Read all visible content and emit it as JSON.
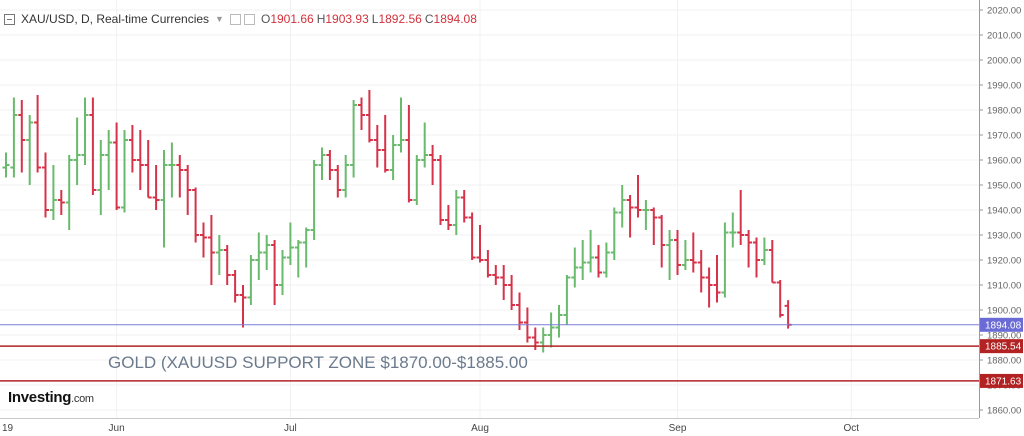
{
  "legend": {
    "symbol": "XAU/USD, D, Real-time Currencies",
    "open_key": "O",
    "open": "1901.66",
    "high_key": "H",
    "high": "1903.93",
    "low_key": "L",
    "low": "1892.56",
    "close_key": "C",
    "close": "1894.08"
  },
  "brand": {
    "name": "Investing",
    "suffix": ".com"
  },
  "chart_data": {
    "type": "ohlc",
    "title": "",
    "y_range": [
      1856,
      2022
    ],
    "y_ticks": [
      "2020.00",
      "2010.00",
      "2000.00",
      "1990.00",
      "1980.00",
      "1970.00",
      "1960.00",
      "1950.00",
      "1940.00",
      "1930.00",
      "1920.00",
      "1910.00",
      "1900.00",
      "1890.00",
      "1880.00",
      "1870.00",
      "1860.00"
    ],
    "x_labels": [
      {
        "text": "19",
        "bar": 0
      },
      {
        "text": "Jun",
        "bar": 14
      },
      {
        "text": "Jul",
        "bar": 36
      },
      {
        "text": "Aug",
        "bar": 60
      },
      {
        "text": "Sep",
        "bar": 85
      },
      {
        "text": "Oct",
        "bar": 107
      }
    ],
    "colors": {
      "up": "#6aba6e",
      "down": "#d6334a",
      "support": "#b22222",
      "price_line": "#7b7bd8",
      "price_tag": "#6b6bd6"
    },
    "current_price": {
      "value": 1894.08,
      "label": "1894.08"
    },
    "support_zone": {
      "label": "GOLD (XAUUSD SUPPORT ZONE $1870.00-$1885.00",
      "upper": {
        "value": 1885.54,
        "label": "1885.54"
      },
      "lower": {
        "value": 1871.63,
        "label": "1871.63"
      }
    },
    "bars": [
      {
        "o": 1957,
        "h": 1963,
        "l": 1953,
        "c": 1958
      },
      {
        "o": 1957,
        "h": 1985,
        "l": 1953,
        "c": 1978
      },
      {
        "o": 1978,
        "h": 1984,
        "l": 1955,
        "c": 1968
      },
      {
        "o": 1968,
        "h": 1978,
        "l": 1950,
        "c": 1975
      },
      {
        "o": 1975,
        "h": 1986,
        "l": 1955,
        "c": 1957
      },
      {
        "o": 1957,
        "h": 1963,
        "l": 1937,
        "c": 1940
      },
      {
        "o": 1940,
        "h": 1958,
        "l": 1936,
        "c": 1944
      },
      {
        "o": 1944,
        "h": 1948,
        "l": 1938,
        "c": 1943
      },
      {
        "o": 1943,
        "h": 1962,
        "l": 1932,
        "c": 1960
      },
      {
        "o": 1960,
        "h": 1977,
        "l": 1950,
        "c": 1962
      },
      {
        "o": 1962,
        "h": 1985,
        "l": 1958,
        "c": 1978
      },
      {
        "o": 1978,
        "h": 1985,
        "l": 1946,
        "c": 1948
      },
      {
        "o": 1948,
        "h": 1968,
        "l": 1938,
        "c": 1962
      },
      {
        "o": 1962,
        "h": 1972,
        "l": 1948,
        "c": 1967
      },
      {
        "o": 1967,
        "h": 1975,
        "l": 1940,
        "c": 1941
      },
      {
        "o": 1941,
        "h": 1972,
        "l": 1939,
        "c": 1968
      },
      {
        "o": 1968,
        "h": 1974,
        "l": 1955,
        "c": 1960
      },
      {
        "o": 1960,
        "h": 1972,
        "l": 1948,
        "c": 1958
      },
      {
        "o": 1958,
        "h": 1968,
        "l": 1945,
        "c": 1945
      },
      {
        "o": 1945,
        "h": 1958,
        "l": 1940,
        "c": 1944
      },
      {
        "o": 1944,
        "h": 1964,
        "l": 1925,
        "c": 1958
      },
      {
        "o": 1958,
        "h": 1967,
        "l": 1945,
        "c": 1958
      },
      {
        "o": 1958,
        "h": 1962,
        "l": 1945,
        "c": 1956
      },
      {
        "o": 1956,
        "h": 1958,
        "l": 1938,
        "c": 1948
      },
      {
        "o": 1948,
        "h": 1949,
        "l": 1927,
        "c": 1930
      },
      {
        "o": 1930,
        "h": 1935,
        "l": 1921,
        "c": 1929
      },
      {
        "o": 1929,
        "h": 1938,
        "l": 1910,
        "c": 1923
      },
      {
        "o": 1923,
        "h": 1930,
        "l": 1914,
        "c": 1924
      },
      {
        "o": 1924,
        "h": 1926,
        "l": 1910,
        "c": 1914
      },
      {
        "o": 1914,
        "h": 1916,
        "l": 1903,
        "c": 1906
      },
      {
        "o": 1906,
        "h": 1910,
        "l": 1893,
        "c": 1905
      },
      {
        "o": 1905,
        "h": 1922,
        "l": 1902,
        "c": 1920
      },
      {
        "o": 1920,
        "h": 1931,
        "l": 1912,
        "c": 1923
      },
      {
        "o": 1923,
        "h": 1930,
        "l": 1916,
        "c": 1926
      },
      {
        "o": 1926,
        "h": 1928,
        "l": 1902,
        "c": 1910
      },
      {
        "o": 1910,
        "h": 1924,
        "l": 1906,
        "c": 1921
      },
      {
        "o": 1921,
        "h": 1935,
        "l": 1918,
        "c": 1925
      },
      {
        "o": 1925,
        "h": 1928,
        "l": 1913,
        "c": 1927
      },
      {
        "o": 1927,
        "h": 1933,
        "l": 1917,
        "c": 1932
      },
      {
        "o": 1932,
        "h": 1960,
        "l": 1928,
        "c": 1958
      },
      {
        "o": 1958,
        "h": 1965,
        "l": 1952,
        "c": 1962
      },
      {
        "o": 1962,
        "h": 1964,
        "l": 1952,
        "c": 1956
      },
      {
        "o": 1956,
        "h": 1958,
        "l": 1945,
        "c": 1948
      },
      {
        "o": 1948,
        "h": 1962,
        "l": 1945,
        "c": 1958
      },
      {
        "o": 1958,
        "h": 1984,
        "l": 1953,
        "c": 1982
      },
      {
        "o": 1982,
        "h": 1985,
        "l": 1972,
        "c": 1978
      },
      {
        "o": 1978,
        "h": 1988,
        "l": 1967,
        "c": 1968
      },
      {
        "o": 1968,
        "h": 1974,
        "l": 1957,
        "c": 1964
      },
      {
        "o": 1964,
        "h": 1978,
        "l": 1955,
        "c": 1956
      },
      {
        "o": 1956,
        "h": 1970,
        "l": 1952,
        "c": 1966
      },
      {
        "o": 1966,
        "h": 1985,
        "l": 1963,
        "c": 1968
      },
      {
        "o": 1968,
        "h": 1982,
        "l": 1943,
        "c": 1944
      },
      {
        "o": 1944,
        "h": 1962,
        "l": 1942,
        "c": 1960
      },
      {
        "o": 1960,
        "h": 1975,
        "l": 1957,
        "c": 1962
      },
      {
        "o": 1962,
        "h": 1966,
        "l": 1950,
        "c": 1960
      },
      {
        "o": 1960,
        "h": 1962,
        "l": 1934,
        "c": 1936
      },
      {
        "o": 1936,
        "h": 1942,
        "l": 1932,
        "c": 1934
      },
      {
        "o": 1934,
        "h": 1948,
        "l": 1930,
        "c": 1945
      },
      {
        "o": 1945,
        "h": 1948,
        "l": 1935,
        "c": 1937
      },
      {
        "o": 1937,
        "h": 1939,
        "l": 1920,
        "c": 1921
      },
      {
        "o": 1921,
        "h": 1934,
        "l": 1919,
        "c": 1920
      },
      {
        "o": 1920,
        "h": 1924,
        "l": 1913,
        "c": 1914
      },
      {
        "o": 1914,
        "h": 1918,
        "l": 1910,
        "c": 1913
      },
      {
        "o": 1913,
        "h": 1918,
        "l": 1904,
        "c": 1910
      },
      {
        "o": 1910,
        "h": 1914,
        "l": 1900,
        "c": 1902
      },
      {
        "o": 1902,
        "h": 1907,
        "l": 1892,
        "c": 1895
      },
      {
        "o": 1895,
        "h": 1901,
        "l": 1887,
        "c": 1889
      },
      {
        "o": 1889,
        "h": 1893,
        "l": 1884,
        "c": 1887
      },
      {
        "o": 1887,
        "h": 1893,
        "l": 1883,
        "c": 1890
      },
      {
        "o": 1890,
        "h": 1899,
        "l": 1885,
        "c": 1893
      },
      {
        "o": 1893,
        "h": 1902,
        "l": 1889,
        "c": 1898
      },
      {
        "o": 1898,
        "h": 1914,
        "l": 1894,
        "c": 1913
      },
      {
        "o": 1913,
        "h": 1925,
        "l": 1909,
        "c": 1917
      },
      {
        "o": 1917,
        "h": 1928,
        "l": 1912,
        "c": 1919
      },
      {
        "o": 1919,
        "h": 1932,
        "l": 1915,
        "c": 1921
      },
      {
        "o": 1921,
        "h": 1926,
        "l": 1913,
        "c": 1915
      },
      {
        "o": 1915,
        "h": 1927,
        "l": 1913,
        "c": 1923
      },
      {
        "o": 1923,
        "h": 1941,
        "l": 1920,
        "c": 1939
      },
      {
        "o": 1939,
        "h": 1950,
        "l": 1933,
        "c": 1944
      },
      {
        "o": 1944,
        "h": 1946,
        "l": 1929,
        "c": 1941
      },
      {
        "o": 1941,
        "h": 1954,
        "l": 1937,
        "c": 1940
      },
      {
        "o": 1940,
        "h": 1944,
        "l": 1932,
        "c": 1940
      },
      {
        "o": 1940,
        "h": 1941,
        "l": 1926,
        "c": 1937
      },
      {
        "o": 1937,
        "h": 1938,
        "l": 1917,
        "c": 1926
      },
      {
        "o": 1926,
        "h": 1932,
        "l": 1912,
        "c": 1928
      },
      {
        "o": 1928,
        "h": 1932,
        "l": 1914,
        "c": 1918
      },
      {
        "o": 1918,
        "h": 1928,
        "l": 1916,
        "c": 1920
      },
      {
        "o": 1920,
        "h": 1931,
        "l": 1915,
        "c": 1919
      },
      {
        "o": 1919,
        "h": 1924,
        "l": 1907,
        "c": 1913
      },
      {
        "o": 1913,
        "h": 1917,
        "l": 1901,
        "c": 1910
      },
      {
        "o": 1910,
        "h": 1922,
        "l": 1903,
        "c": 1907
      },
      {
        "o": 1907,
        "h": 1935,
        "l": 1905,
        "c": 1931
      },
      {
        "o": 1931,
        "h": 1939,
        "l": 1925,
        "c": 1931
      },
      {
        "o": 1931,
        "h": 1948,
        "l": 1926,
        "c": 1930
      },
      {
        "o": 1930,
        "h": 1932,
        "l": 1917,
        "c": 1927
      },
      {
        "o": 1927,
        "h": 1929,
        "l": 1913,
        "c": 1920
      },
      {
        "o": 1920,
        "h": 1929,
        "l": 1918,
        "c": 1924
      },
      {
        "o": 1924,
        "h": 1928,
        "l": 1911,
        "c": 1911
      },
      {
        "o": 1911,
        "h": 1912,
        "l": 1897,
        "c": 1898
      },
      {
        "o": 1901.66,
        "h": 1903.93,
        "l": 1892.56,
        "c": 1894.08
      }
    ]
  }
}
